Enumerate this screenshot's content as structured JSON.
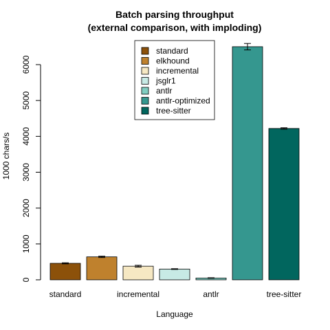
{
  "chart_data": {
    "type": "bar",
    "title_line1": "Batch parsing throughput",
    "title_line2": "(external comparison, with imploding)",
    "xlabel": "Language",
    "ylabel": "1000 chars/s",
    "ylim": [
      0,
      6600
    ],
    "yticks": [
      0,
      1000,
      2000,
      3000,
      4000,
      5000,
      6000
    ],
    "categories": [
      "standard",
      "elkhound",
      "incremental",
      "jsglr1",
      "antlr",
      "antlr-optimized",
      "tree-sitter"
    ],
    "visible_xtick_labels": [
      "standard",
      "incremental",
      "antlr",
      "tree-sitter"
    ],
    "values": [
      460,
      640,
      380,
      300,
      50,
      6500,
      4220
    ],
    "errors": [
      15,
      20,
      25,
      10,
      8,
      90,
      20
    ],
    "colors": [
      "#8C510A",
      "#BF812D",
      "#F6E8C3",
      "#C7EAE5",
      "#80CDC1",
      "#35978F",
      "#01665E"
    ],
    "legend": {
      "placement": "top-center",
      "entries": [
        "standard",
        "elkhound",
        "incremental",
        "jsglr1",
        "antlr",
        "antlr-optimized",
        "tree-sitter"
      ]
    },
    "grid": false
  }
}
